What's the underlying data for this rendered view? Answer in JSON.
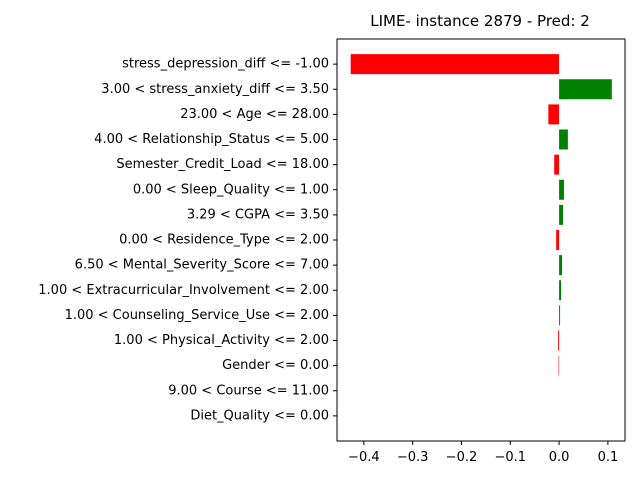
{
  "chart_data": {
    "type": "bar",
    "orientation": "horizontal",
    "title": "LIME- instance 2879 - Pred: 2",
    "xlabel": "",
    "ylabel": "",
    "xlim": [
      -0.455,
      0.135
    ],
    "xticks": [
      -0.4,
      -0.3,
      -0.2,
      -0.1,
      0.0,
      0.1
    ],
    "xtick_labels": [
      "−0.4",
      "−0.3",
      "−0.2",
      "−0.1",
      "0.0",
      "0.1"
    ],
    "grid": false,
    "colors": {
      "positive": "#008000",
      "negative": "#ff0000"
    },
    "categories": [
      "stress_depression_diff <= -1.00",
      "3.00 < stress_anxiety_diff <= 3.50",
      "23.00 < Age <= 28.00",
      "4.00 < Relationship_Status <= 5.00",
      "Semester_Credit_Load <= 18.00",
      "0.00 < Sleep_Quality <= 1.00",
      "3.29 < CGPA <= 3.50",
      "0.00 < Residence_Type <= 2.00",
      "6.50 < Mental_Severity_Score <= 7.00",
      "1.00 < Extracurricular_Involvement <= 2.00",
      "1.00 < Counseling_Service_Use <= 2.00",
      "1.00 < Physical_Activity <= 2.00",
      "Gender <= 0.00",
      "9.00 < Course <= 11.00",
      "Diet_Quality <= 0.00"
    ],
    "values": [
      -0.427,
      0.108,
      -0.022,
      0.018,
      -0.01,
      0.01,
      0.008,
      -0.006,
      0.006,
      0.004,
      0.002,
      -0.002,
      -0.001,
      0.0,
      0.0
    ]
  }
}
